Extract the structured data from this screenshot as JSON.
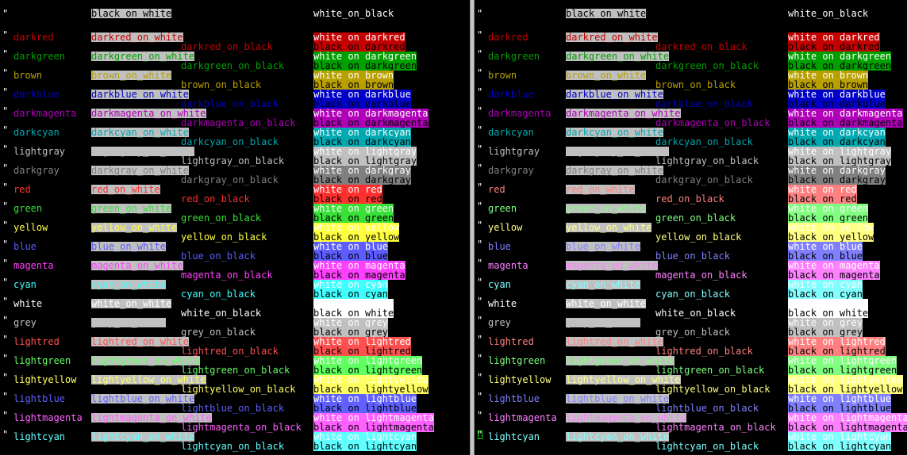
{
  "panes": [
    {
      "name": "left-pane"
    },
    {
      "name": "right-pane"
    }
  ],
  "comment_quote": "\"",
  "header": {
    "black_on_white": "black_on_white",
    "white_on_black": "white_on_black"
  },
  "rows": [
    {
      "color": "darkred",
      "on_white": "darkred_on_white",
      "on_black": "darkred_on_black",
      "white_on": "white_on_darkred",
      "black_on": "black_on_darkred"
    },
    {
      "color": "darkgreen",
      "on_white": "darkgreen_on_white",
      "on_black": "darkgreen_on_black",
      "white_on": "white_on_darkgreen",
      "black_on": "black_on_darkgreen"
    },
    {
      "color": "brown",
      "on_white": "brown_on_white",
      "on_black": "brown_on_black",
      "white_on": "white_on_brown",
      "black_on": "black_on_brown"
    },
    {
      "color": "darkblue",
      "on_white": "darkblue_on_white",
      "on_black": "darkblue_on_black",
      "white_on": "white_on_darkblue",
      "black_on": "black_on_darkblue"
    },
    {
      "color": "darkmagenta",
      "on_white": "darkmagenta_on_white",
      "on_black": "darkmagenta_on_black",
      "white_on": "white_on_darkmagenta",
      "black_on": "black_on_darkmagenta"
    },
    {
      "color": "darkcyan",
      "on_white": "darkcyan_on_white",
      "on_black": "darkcyan_on_black",
      "white_on": "white_on_darkcyan",
      "black_on": "black_on_darkcyan"
    },
    {
      "color": "lightgray",
      "on_white": "lightgray_on_white",
      "on_black": "lightgray_on_black",
      "white_on": "white_on_lightgray",
      "black_on": "black_on_lightgray"
    },
    {
      "color": "darkgray",
      "on_white": "darkgray_on_white",
      "on_black": "darkgray_on_black",
      "white_on": "white_on_darkgray",
      "black_on": "black_on_darkgray"
    },
    {
      "color": "red",
      "on_white": "red_on_white",
      "on_black": "red_on_black",
      "white_on": "white_on_red",
      "black_on": "black_on_red"
    },
    {
      "color": "green",
      "on_white": "green_on_white",
      "on_black": "green_on_black",
      "white_on": "white_on_green",
      "black_on": "black_on_green"
    },
    {
      "color": "yellow",
      "on_white": "yellow_on_white",
      "on_black": "yellow_on_black",
      "white_on": "white_on_yellow",
      "black_on": "black_on_yellow"
    },
    {
      "color": "blue",
      "on_white": "blue_on_white",
      "on_black": "blue_on_black",
      "white_on": "white_on_blue",
      "black_on": "black_on_blue"
    },
    {
      "color": "magenta",
      "on_white": "magenta_on_white",
      "on_black": "magenta_on_black",
      "white_on": "white_on_magenta",
      "black_on": "black_on_magenta"
    },
    {
      "color": "cyan",
      "on_white": "cyan_on_white",
      "on_black": "cyan_on_black",
      "white_on": "white_on_cyan",
      "black_on": "black_on_cyan"
    },
    {
      "color": "white",
      "on_white": "white_on_white",
      "on_black": "white_on_black",
      "white_on": "white_on_white",
      "black_on": "black_on_white"
    },
    {
      "color": "grey",
      "on_white": "grey_on_white",
      "on_black": "grey_on_black",
      "white_on": "white_on_grey",
      "black_on": "black_on_grey"
    },
    {
      "color": "lightred",
      "on_white": "lightred_on_white",
      "on_black": "lightred_on_black",
      "white_on": "white_on_lightred",
      "black_on": "black_on_lightred"
    },
    {
      "color": "lightgreen",
      "on_white": "lightgreen_on_white",
      "on_black": "lightgreen_on_black",
      "white_on": "white_on_lightgreen",
      "black_on": "black_on_lightgreen"
    },
    {
      "color": "lightyellow",
      "on_white": "lightyellow_on_white",
      "on_black": "lightyellow_on_black",
      "white_on": "white_on_lightyellow",
      "black_on": "black_on_lightyellow"
    },
    {
      "color": "lightblue",
      "on_white": "lightblue_on_white",
      "on_black": "lightblue_on_black",
      "white_on": "white_on_lightblue",
      "black_on": "black_on_lightblue"
    },
    {
      "color": "lightmagenta",
      "on_white": "lightmagenta_on_white",
      "on_black": "lightmagenta_on_black",
      "white_on": "white_on_lightmagenta",
      "black_on": "black_on_lightmagenta"
    },
    {
      "color": "lightcyan",
      "on_white": "lightcyan_on_white",
      "on_black": "lightcyan_on_black",
      "white_on": "white_on_lightcyan",
      "black_on": "black_on_lightcyan"
    }
  ],
  "palette": {
    "darkred": "#c40000",
    "darkgreen": "#00a000",
    "brown": "#b8a000",
    "darkblue": "#0000c8",
    "darkmagenta": "#b000b8",
    "darkcyan": "#00a8b0",
    "lightgray": "#c0c0c0",
    "darkgray": "#808080",
    "red": "#ff3030",
    "green": "#38e038",
    "yellow": "#ffff40",
    "blue": "#5c5cff",
    "magenta": "#ff40ff",
    "cyan": "#40ffff",
    "white": "#ffffff",
    "grey": "#c0c0c0",
    "lightred": "#ff5050",
    "lightgreen": "#60ff60",
    "lightyellow": "#ffff60",
    "lightblue": "#6060ff",
    "lightmagenta": "#ff60ff",
    "lightcyan": "#60ffff"
  },
  "palette_right": {
    "darkred": "#c40000",
    "darkgreen": "#00a000",
    "brown": "#b8a000",
    "darkblue": "#0000c8",
    "darkmagenta": "#b000b8",
    "darkcyan": "#00a8b0",
    "lightgray": "#c0c0c0",
    "darkgray": "#808080",
    "red": "#ff8080",
    "green": "#80ff80",
    "yellow": "#ffff80",
    "blue": "#8080ff",
    "magenta": "#ff80ff",
    "cyan": "#80ffff",
    "white": "#ffffff",
    "grey": "#c0c0c0",
    "lightred": "#ff8080",
    "lightgreen": "#80ff80",
    "lightyellow": "#ffff80",
    "lightblue": "#8080ff",
    "lightmagenta": "#ff80ff",
    "lightcyan": "#80ffff"
  },
  "cursor_color": "#00dd00"
}
